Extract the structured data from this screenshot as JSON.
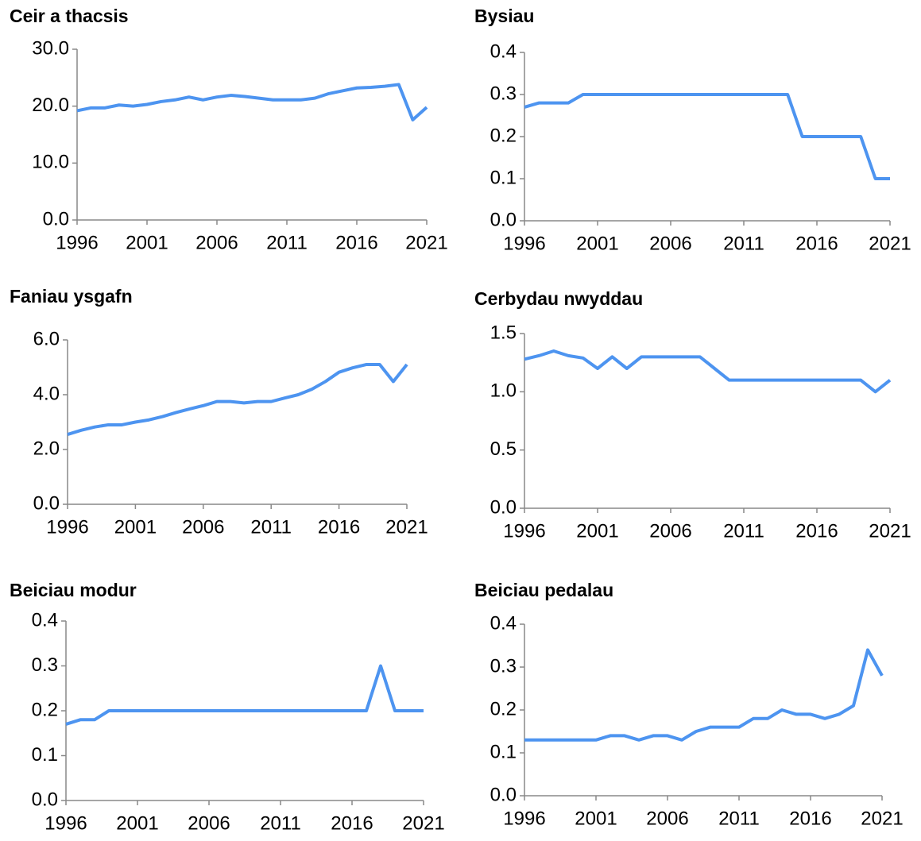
{
  "chart_data": [
    {
      "type": "line",
      "title": "Ceir a thacsis",
      "color": "#4d94f0",
      "x": [
        1996,
        1997,
        1998,
        1999,
        2000,
        2001,
        2002,
        2003,
        2004,
        2005,
        2006,
        2007,
        2008,
        2009,
        2010,
        2011,
        2012,
        2013,
        2014,
        2015,
        2016,
        2017,
        2018,
        2019,
        2020,
        2021
      ],
      "values": [
        19.2,
        19.7,
        19.7,
        20.2,
        20.0,
        20.3,
        20.8,
        21.1,
        21.6,
        21.1,
        21.6,
        21.9,
        21.7,
        21.4,
        21.1,
        21.1,
        21.1,
        21.4,
        22.2,
        22.7,
        23.2,
        23.3,
        23.5,
        23.8,
        17.6,
        19.8
      ],
      "xlim": [
        1996,
        2021
      ],
      "xticks": [
        1996,
        2001,
        2006,
        2011,
        2016,
        2021
      ],
      "ylim": [
        0,
        30
      ],
      "yticks": [
        {
          "value": 0,
          "label": "0.0"
        },
        {
          "value": 10,
          "label": "10.0"
        },
        {
          "value": 20,
          "label": "20.0"
        },
        {
          "value": 30,
          "label": "30.0"
        }
      ]
    },
    {
      "type": "line",
      "title": "Bysiau",
      "color": "#4d94f0",
      "x": [
        1996,
        1997,
        1998,
        1999,
        2000,
        2001,
        2002,
        2003,
        2004,
        2005,
        2006,
        2007,
        2008,
        2009,
        2010,
        2011,
        2012,
        2013,
        2014,
        2015,
        2016,
        2017,
        2018,
        2019,
        2020,
        2021
      ],
      "values": [
        0.27,
        0.28,
        0.28,
        0.28,
        0.3,
        0.3,
        0.3,
        0.3,
        0.3,
        0.3,
        0.3,
        0.3,
        0.3,
        0.3,
        0.3,
        0.3,
        0.3,
        0.3,
        0.3,
        0.2,
        0.2,
        0.2,
        0.2,
        0.2,
        0.1,
        0.1
      ],
      "xlim": [
        1996,
        2021
      ],
      "xticks": [
        1996,
        2001,
        2006,
        2011,
        2016,
        2021
      ],
      "ylim": [
        0,
        0.4
      ],
      "yticks": [
        {
          "value": 0,
          "label": "0.0"
        },
        0.1,
        0.2,
        0.3,
        0.4
      ]
    },
    {
      "type": "line",
      "title": "Faniau ysgafn",
      "color": "#4d94f0",
      "x": [
        1996,
        1997,
        1998,
        1999,
        2000,
        2001,
        2002,
        2003,
        2004,
        2005,
        2006,
        2007,
        2008,
        2009,
        2010,
        2011,
        2012,
        2013,
        2014,
        2015,
        2016,
        2017,
        2018,
        2019,
        2020,
        2021
      ],
      "values": [
        2.55,
        2.7,
        2.82,
        2.9,
        2.9,
        3.0,
        3.08,
        3.2,
        3.35,
        3.48,
        3.6,
        3.75,
        3.75,
        3.7,
        3.75,
        3.75,
        3.88,
        4.0,
        4.2,
        4.48,
        4.82,
        4.98,
        5.1,
        5.1,
        4.48,
        5.1
      ],
      "xlim": [
        1996,
        2021
      ],
      "xticks": [
        1996,
        2001,
        2006,
        2011,
        2016,
        2021
      ],
      "ylim": [
        0,
        6
      ],
      "yticks": [
        {
          "value": 0,
          "label": "0.0"
        },
        {
          "value": 2,
          "label": "2.0"
        },
        {
          "value": 4,
          "label": "4.0"
        },
        {
          "value": 6,
          "label": "6.0"
        }
      ]
    },
    {
      "type": "line",
      "title": "Cerbydau nwyddau",
      "color": "#4d94f0",
      "x": [
        1996,
        1997,
        1998,
        1999,
        2000,
        2001,
        2002,
        2003,
        2004,
        2005,
        2006,
        2007,
        2008,
        2009,
        2010,
        2011,
        2012,
        2013,
        2014,
        2015,
        2016,
        2017,
        2018,
        2019,
        2020,
        2021
      ],
      "values": [
        1.28,
        1.31,
        1.35,
        1.31,
        1.29,
        1.2,
        1.3,
        1.2,
        1.3,
        1.3,
        1.3,
        1.3,
        1.3,
        1.2,
        1.1,
        1.1,
        1.1,
        1.1,
        1.1,
        1.1,
        1.1,
        1.1,
        1.1,
        1.1,
        1.0,
        1.1
      ],
      "xlim": [
        1996,
        2021
      ],
      "xticks": [
        1996,
        2001,
        2006,
        2011,
        2016,
        2021
      ],
      "ylim": [
        0,
        1.5
      ],
      "yticks": [
        {
          "value": 0,
          "label": "0.0"
        },
        0.5,
        {
          "value": 1,
          "label": "1.0"
        },
        1.5
      ]
    },
    {
      "type": "line",
      "title": "Beiciau modur",
      "color": "#4d94f0",
      "x": [
        1996,
        1997,
        1998,
        1999,
        2000,
        2001,
        2002,
        2003,
        2004,
        2005,
        2006,
        2007,
        2008,
        2009,
        2010,
        2011,
        2012,
        2013,
        2014,
        2015,
        2016,
        2017,
        2018,
        2019,
        2020,
        2021
      ],
      "values": [
        0.17,
        0.18,
        0.18,
        0.2,
        0.2,
        0.2,
        0.2,
        0.2,
        0.2,
        0.2,
        0.2,
        0.2,
        0.2,
        0.2,
        0.2,
        0.2,
        0.2,
        0.2,
        0.2,
        0.2,
        0.2,
        0.2,
        0.3,
        0.2,
        0.2,
        0.2
      ],
      "xlim": [
        1996,
        2021
      ],
      "xticks": [
        1996,
        2001,
        2006,
        2011,
        2016,
        2021
      ],
      "ylim": [
        0,
        0.4
      ],
      "yticks": [
        {
          "value": 0,
          "label": "0.0"
        },
        0.1,
        0.2,
        0.3,
        0.4
      ]
    },
    {
      "type": "line",
      "title": "Beiciau pedalau",
      "color": "#4d94f0",
      "x": [
        1996,
        1997,
        1998,
        1999,
        2000,
        2001,
        2002,
        2003,
        2004,
        2005,
        2006,
        2007,
        2008,
        2009,
        2010,
        2011,
        2012,
        2013,
        2014,
        2015,
        2016,
        2017,
        2018,
        2019,
        2020,
        2021
      ],
      "values": [
        0.13,
        0.13,
        0.13,
        0.13,
        0.13,
        0.13,
        0.14,
        0.14,
        0.13,
        0.14,
        0.14,
        0.13,
        0.15,
        0.16,
        0.16,
        0.16,
        0.18,
        0.18,
        0.2,
        0.19,
        0.19,
        0.18,
        0.19,
        0.21,
        0.34,
        0.28
      ],
      "xlim": [
        1996,
        2021
      ],
      "xticks": [
        1996,
        2001,
        2006,
        2011,
        2016,
        2021
      ],
      "ylim": [
        0,
        0.4
      ],
      "yticks": [
        {
          "value": 0,
          "label": "0.0"
        },
        0.1,
        0.2,
        0.3,
        0.4
      ]
    }
  ]
}
